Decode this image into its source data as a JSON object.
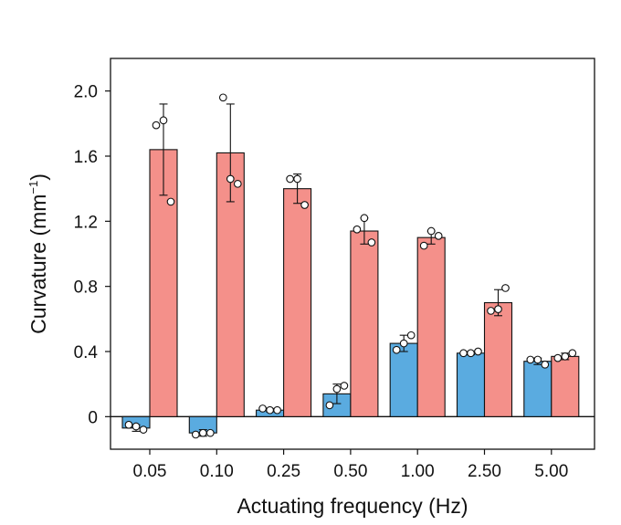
{
  "chart_data": {
    "type": "bar",
    "categories": [
      "0.05",
      "0.10",
      "0.25",
      "0.50",
      "1.00",
      "2.50",
      "5.00"
    ],
    "xlabel": "Actuating frequency (Hz)",
    "ylabel": "Curvature (mm",
    "ylabel_sup": "−1",
    "ylabel_close": ")",
    "ylim": [
      -0.2,
      2.2
    ],
    "yticks": [
      0,
      0.4,
      0.8,
      1.2,
      1.6,
      2.0
    ],
    "ytick_labels": [
      "0",
      "0.4",
      "0.8",
      "1.2",
      "1.6",
      "2.0"
    ],
    "grid": false,
    "series": [
      {
        "color": "#5aabe0",
        "values": [
          -0.07,
          -0.1,
          0.04,
          0.14,
          0.45,
          0.39,
          0.34
        ],
        "err": [
          0.02,
          0.02,
          0.01,
          0.06,
          0.05,
          0.01,
          0.02
        ],
        "points": [
          [
            -0.05,
            -0.06,
            -0.08
          ],
          [
            -0.11,
            -0.1,
            -0.1
          ],
          [
            0.05,
            0.04,
            0.04
          ],
          [
            0.07,
            0.17,
            0.19
          ],
          [
            0.41,
            0.45,
            0.5
          ],
          [
            0.39,
            0.39,
            0.4
          ],
          [
            0.35,
            0.35,
            0.32
          ]
        ]
      },
      {
        "color": "#f4908a",
        "values": [
          1.64,
          1.62,
          1.4,
          1.14,
          1.1,
          0.7,
          0.37
        ],
        "err": [
          0.28,
          0.3,
          0.09,
          0.08,
          0.04,
          0.08,
          0.02
        ],
        "points": [
          [
            1.79,
            1.82,
            1.32
          ],
          [
            1.96,
            1.46,
            1.43
          ],
          [
            1.46,
            1.46,
            1.3
          ],
          [
            1.15,
            1.22,
            1.07
          ],
          [
            1.05,
            1.14,
            1.11
          ],
          [
            0.65,
            0.66,
            0.79
          ],
          [
            0.36,
            0.37,
            0.39
          ]
        ]
      }
    ]
  }
}
